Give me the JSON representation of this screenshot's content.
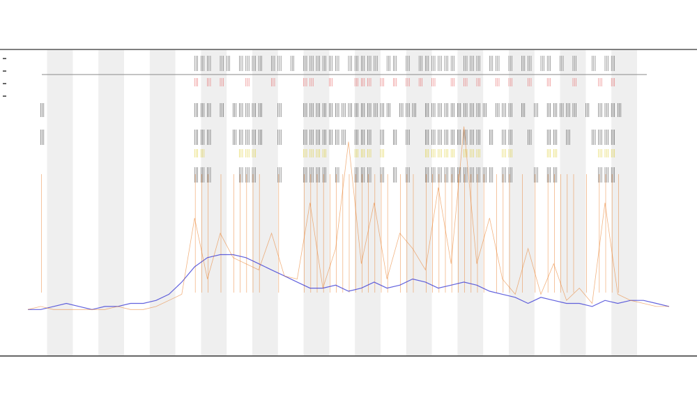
{
  "chart_data": {
    "type": "line",
    "title": "",
    "subtitle_1": "",
    "subtitle_2": "",
    "xlabel": "",
    "ylabel": "",
    "y_range": [
      0,
      1
    ],
    "x_range": [
      0,
      100
    ],
    "grid": false,
    "legend": {
      "placement": "top-left",
      "entries": [
        {
          "name": "",
          "color": "#000000"
        },
        {
          "name": "",
          "color": "#000000"
        },
        {
          "name": "",
          "color": "#000000"
        },
        {
          "name": "",
          "color": "#000000"
        }
      ]
    },
    "bands": [
      3,
      11,
      19,
      27,
      35,
      43,
      51,
      59,
      67,
      75,
      83,
      91
    ],
    "band_width": 4,
    "series": [
      {
        "color": "#3b3bd6",
        "x": [
          0,
          2,
          4,
          6,
          8,
          10,
          12,
          14,
          16,
          18,
          20,
          22,
          24,
          26,
          28,
          30,
          32,
          34,
          36,
          38,
          40,
          42,
          44,
          46,
          48,
          50,
          52,
          54,
          56,
          58,
          60,
          62,
          64,
          66,
          68,
          70,
          72,
          74,
          76,
          78,
          80,
          82,
          84,
          86,
          88,
          90,
          92,
          94,
          96,
          98,
          100
        ],
        "y": [
          0.15,
          0.15,
          0.16,
          0.17,
          0.16,
          0.15,
          0.16,
          0.16,
          0.17,
          0.17,
          0.18,
          0.2,
          0.24,
          0.29,
          0.32,
          0.33,
          0.33,
          0.32,
          0.3,
          0.28,
          0.26,
          0.24,
          0.22,
          0.22,
          0.23,
          0.21,
          0.22,
          0.24,
          0.22,
          0.23,
          0.25,
          0.24,
          0.22,
          0.23,
          0.24,
          0.23,
          0.21,
          0.2,
          0.19,
          0.17,
          0.19,
          0.18,
          0.17,
          0.17,
          0.16,
          0.18,
          0.17,
          0.18,
          0.18,
          0.17,
          0.16
        ]
      },
      {
        "color": "#e8751a",
        "x": [
          0,
          2,
          4,
          6,
          8,
          10,
          12,
          14,
          16,
          18,
          20,
          22,
          24,
          26,
          28,
          30,
          32,
          34,
          36,
          38,
          40,
          42,
          44,
          46,
          48,
          50,
          52,
          54,
          56,
          58,
          60,
          62,
          64,
          66,
          68,
          70,
          72,
          74,
          76,
          78,
          80,
          82,
          84,
          86,
          88,
          90,
          92,
          94,
          96,
          98,
          100
        ],
        "y": [
          0.15,
          0.16,
          0.15,
          0.15,
          0.15,
          0.15,
          0.15,
          0.16,
          0.15,
          0.15,
          0.16,
          0.18,
          0.2,
          0.45,
          0.25,
          0.4,
          0.32,
          0.3,
          0.28,
          0.4,
          0.26,
          0.25,
          0.5,
          0.22,
          0.35,
          0.7,
          0.3,
          0.5,
          0.25,
          0.4,
          0.35,
          0.28,
          0.55,
          0.3,
          0.75,
          0.3,
          0.45,
          0.25,
          0.2,
          0.35,
          0.2,
          0.3,
          0.18,
          0.22,
          0.17,
          0.5,
          0.2,
          0.18,
          0.17,
          0.16,
          0.16
        ]
      }
    ],
    "event_rows": [
      {
        "color": "#333333",
        "x": [
          26,
          27,
          28,
          30,
          31,
          33,
          34,
          35,
          36,
          38,
          39,
          41,
          43,
          44,
          45,
          46,
          47,
          48,
          50,
          51,
          52,
          53,
          54,
          56,
          57,
          59,
          61,
          62,
          63,
          64,
          65,
          66,
          68,
          69,
          70,
          72,
          73,
          75,
          77,
          78,
          80,
          81,
          83,
          85,
          88,
          90,
          91
        ]
      },
      {
        "color": "#e04040",
        "x": [
          26,
          28,
          30,
          34,
          38,
          43,
          44,
          47,
          51,
          52,
          53,
          55,
          57,
          59,
          61,
          63,
          66,
          68,
          70,
          73,
          75,
          78,
          81,
          85,
          89,
          91
        ]
      },
      {
        "color": "#111111",
        "x": [
          2,
          26,
          27,
          28,
          30,
          32,
          33,
          34,
          35,
          36,
          39,
          43,
          44,
          45,
          46,
          47,
          48,
          49,
          50,
          51,
          52,
          53,
          54,
          55,
          56,
          58,
          59,
          60,
          62,
          63,
          64,
          65,
          66,
          67,
          68,
          69,
          70,
          71,
          73,
          74,
          75,
          77,
          79,
          81,
          82,
          83,
          84,
          85,
          87,
          89,
          90,
          91,
          92
        ]
      },
      {
        "color": "#111111",
        "x": [
          2,
          26,
          27,
          28,
          32,
          33,
          34,
          35,
          36,
          39,
          43,
          44,
          45,
          46,
          47,
          48,
          49,
          51,
          52,
          53,
          55,
          57,
          59,
          62,
          63,
          64,
          65,
          66,
          67,
          68,
          69,
          70,
          72,
          74,
          75,
          78,
          81,
          82,
          84,
          88,
          89,
          90,
          91
        ]
      },
      {
        "color": "#d6c100",
        "x": [
          26,
          27,
          33,
          34,
          35,
          43,
          44,
          45,
          46,
          51,
          52,
          53,
          55,
          62,
          63,
          64,
          65,
          66,
          68,
          69,
          70,
          74,
          75,
          81,
          82,
          89,
          90,
          91
        ]
      },
      {
        "color": "#222222",
        "x": [
          26,
          27,
          28,
          33,
          34,
          35,
          39,
          43,
          44,
          45,
          46,
          48,
          51,
          52,
          53,
          55,
          57,
          59,
          62,
          63,
          64,
          65,
          66,
          67,
          68,
          69,
          70,
          71,
          72,
          74,
          75,
          79,
          81,
          82,
          89,
          90,
          91
        ]
      }
    ]
  }
}
